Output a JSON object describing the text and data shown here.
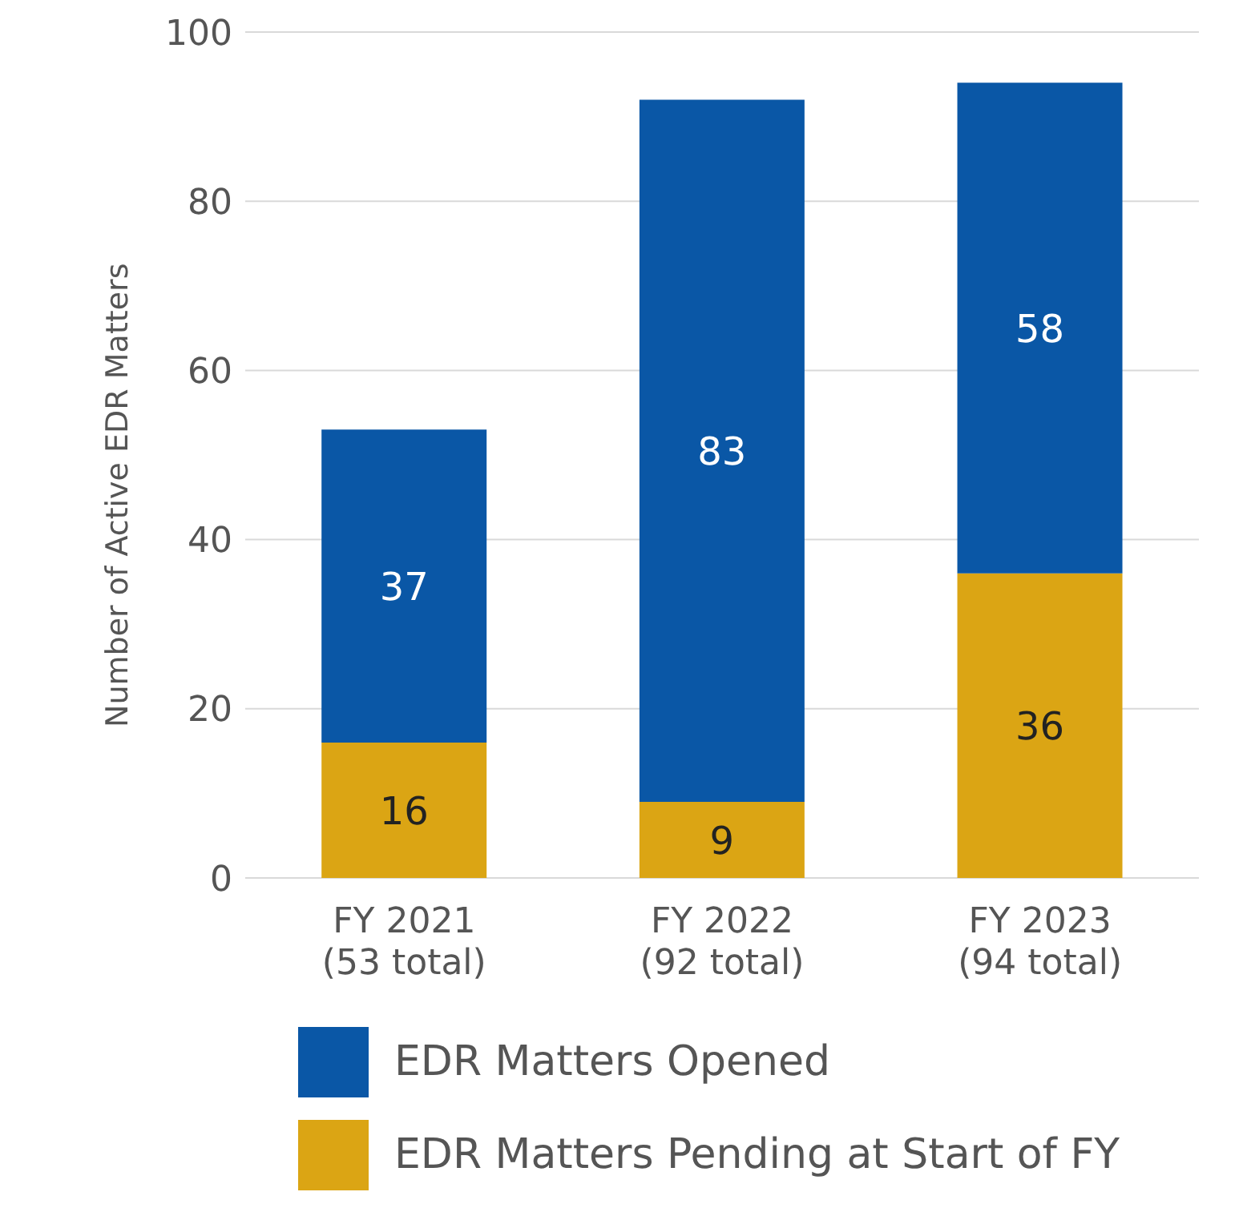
{
  "chart_data": {
    "type": "bar",
    "stacked": true,
    "ylabel": "Number of Active EDR Matters",
    "categories": [
      "FY 2021\n(53 total)",
      "FY 2022\n(92 total)",
      "FY 2023\n(94 total)"
    ],
    "series": [
      {
        "name": "EDR Matters Pending at Start of FY",
        "color": "#dba514",
        "values": [
          16,
          9,
          36
        ]
      },
      {
        "name": "EDR Matters Opened",
        "color": "#0a57a6",
        "values": [
          37,
          83,
          58
        ]
      }
    ],
    "ylim": [
      0,
      100
    ],
    "yticks": [
      0,
      20,
      40,
      60,
      80,
      100
    ],
    "grid": "y",
    "legend": "bottom",
    "data_labels": true
  }
}
